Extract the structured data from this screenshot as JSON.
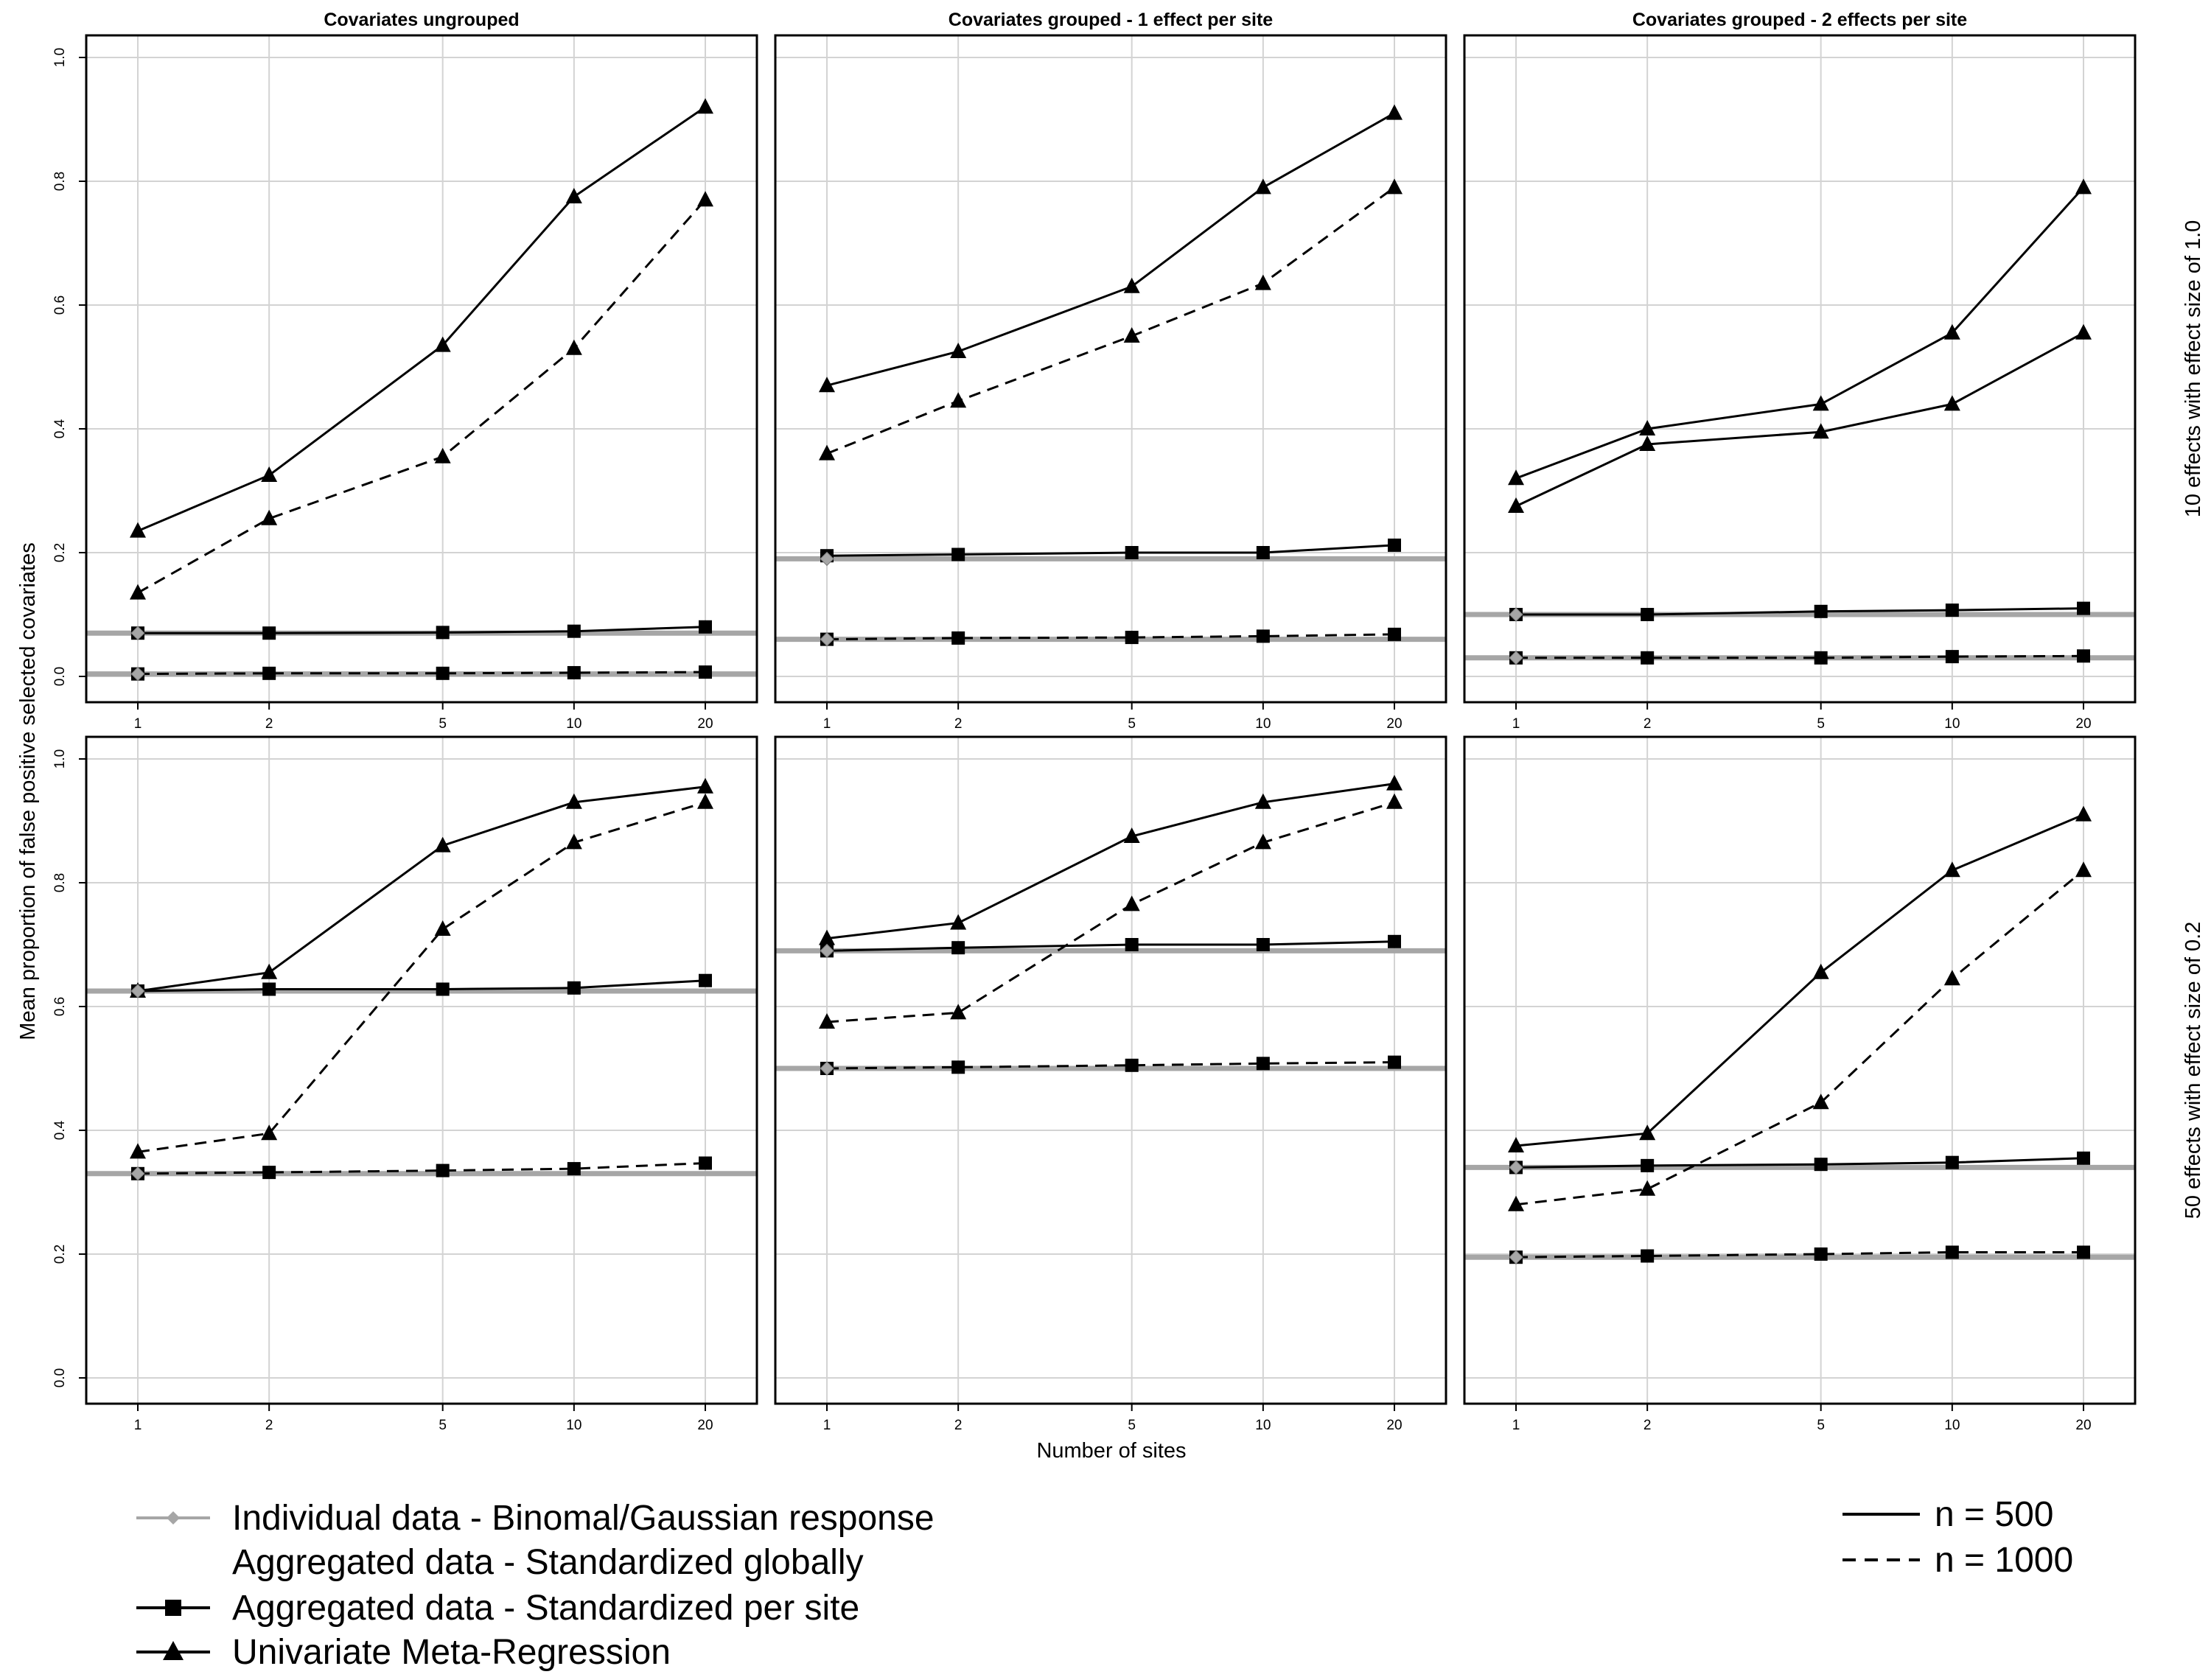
{
  "chart_data": {
    "type": "line",
    "xlabel": "Number of sites",
    "ylabel": "Mean proportion of false positive selected covariates",
    "x": [
      1,
      2,
      5,
      10,
      20
    ],
    "x_ticks": [
      "1",
      "2",
      "5",
      "10",
      "20"
    ],
    "y_ticks": [
      "0.0",
      "0.2",
      "0.4",
      "0.6",
      "0.8",
      "1.0"
    ],
    "ylim": [
      0,
      1
    ],
    "grid": true,
    "column_titles": [
      "Covariates ungrouped",
      "Covariates grouped - 1 effect per site",
      "Covariates grouped - 2 effects per site"
    ],
    "row_titles": [
      "10 effects with effect size of 1.0",
      "50 effects with effect size of 0.2"
    ],
    "legend": {
      "methods": [
        "Individual data - Binomal/Gaussian response",
        "Aggregated data - Standardized globally",
        "Aggregated data - Standardized per site",
        "Univariate Meta-Regression"
      ],
      "sample_sizes": [
        "n = 500",
        "n = 1000"
      ]
    },
    "colors": {
      "individual": "#a6a6a6",
      "aggregated": "#000000",
      "grid": "#d3d3d3"
    },
    "panels": [
      {
        "row": 0,
        "col": 0,
        "individual": {
          "n500": 0.07,
          "n1000": 0.004
        },
        "per_site": {
          "n500": [
            0.07,
            0.07,
            0.071,
            0.073,
            0.08
          ],
          "n1000": [
            0.004,
            0.005,
            0.005,
            0.006,
            0.007
          ]
        },
        "meta": {
          "n500": [
            0.235,
            0.325,
            0.535,
            0.775,
            0.92
          ],
          "n1000": [
            0.135,
            0.255,
            0.355,
            0.53,
            0.77
          ]
        }
      },
      {
        "row": 0,
        "col": 1,
        "individual": {
          "n500": 0.19,
          "n1000": 0.06
        },
        "per_site": {
          "n500": [
            0.195,
            0.197,
            0.2,
            0.2,
            0.212
          ],
          "n1000": [
            0.06,
            0.062,
            0.063,
            0.065,
            0.068
          ]
        },
        "meta": {
          "n500": [
            0.47,
            0.525,
            0.63,
            0.79,
            0.91
          ],
          "n1000": [
            0.36,
            0.445,
            0.55,
            0.635,
            0.79
          ]
        }
      },
      {
        "row": 0,
        "col": 2,
        "individual": {
          "n500": 0.1,
          "n1000": 0.03
        },
        "per_site": {
          "n500": [
            0.1,
            0.1,
            0.105,
            0.107,
            0.11
          ],
          "n1000": [
            0.03,
            0.03,
            0.03,
            0.032,
            0.033
          ]
        },
        "meta": {
          "n500": [
            0.32,
            0.4,
            0.44,
            0.555,
            0.79
          ],
          "n1000": [
            0.275,
            0.375,
            0.395,
            0.44,
            0.555
          ]
        },
        "meta_n1000_dashed": false
      },
      {
        "row": 1,
        "col": 0,
        "individual": {
          "n500": 0.625,
          "n1000": 0.33
        },
        "per_site": {
          "n500": [
            0.625,
            0.628,
            0.628,
            0.63,
            0.642
          ],
          "n1000": [
            0.33,
            0.332,
            0.335,
            0.338,
            0.347
          ]
        },
        "meta": {
          "n500": [
            0.625,
            0.655,
            0.86,
            0.93,
            0.955
          ],
          "n1000": [
            0.365,
            0.395,
            0.725,
            0.865,
            0.93
          ]
        }
      },
      {
        "row": 1,
        "col": 1,
        "individual": {
          "n500": 0.69,
          "n1000": 0.5
        },
        "per_site": {
          "n500": [
            0.69,
            0.695,
            0.7,
            0.7,
            0.705
          ],
          "n1000": [
            0.5,
            0.502,
            0.505,
            0.508,
            0.51
          ]
        },
        "meta": {
          "n500": [
            0.71,
            0.735,
            0.875,
            0.93,
            0.96
          ],
          "n1000": [
            0.575,
            0.59,
            0.765,
            0.865,
            0.93
          ]
        }
      },
      {
        "row": 1,
        "col": 2,
        "individual": {
          "n500": 0.34,
          "n1000": 0.195
        },
        "per_site": {
          "n500": [
            0.34,
            0.343,
            0.345,
            0.348,
            0.355
          ],
          "n1000": [
            0.195,
            0.197,
            0.2,
            0.203,
            0.203
          ]
        },
        "meta": {
          "n500": [
            0.375,
            0.395,
            0.655,
            0.82,
            0.91
          ],
          "n1000": [
            0.28,
            0.305,
            0.445,
            0.645,
            0.82
          ]
        }
      }
    ]
  }
}
